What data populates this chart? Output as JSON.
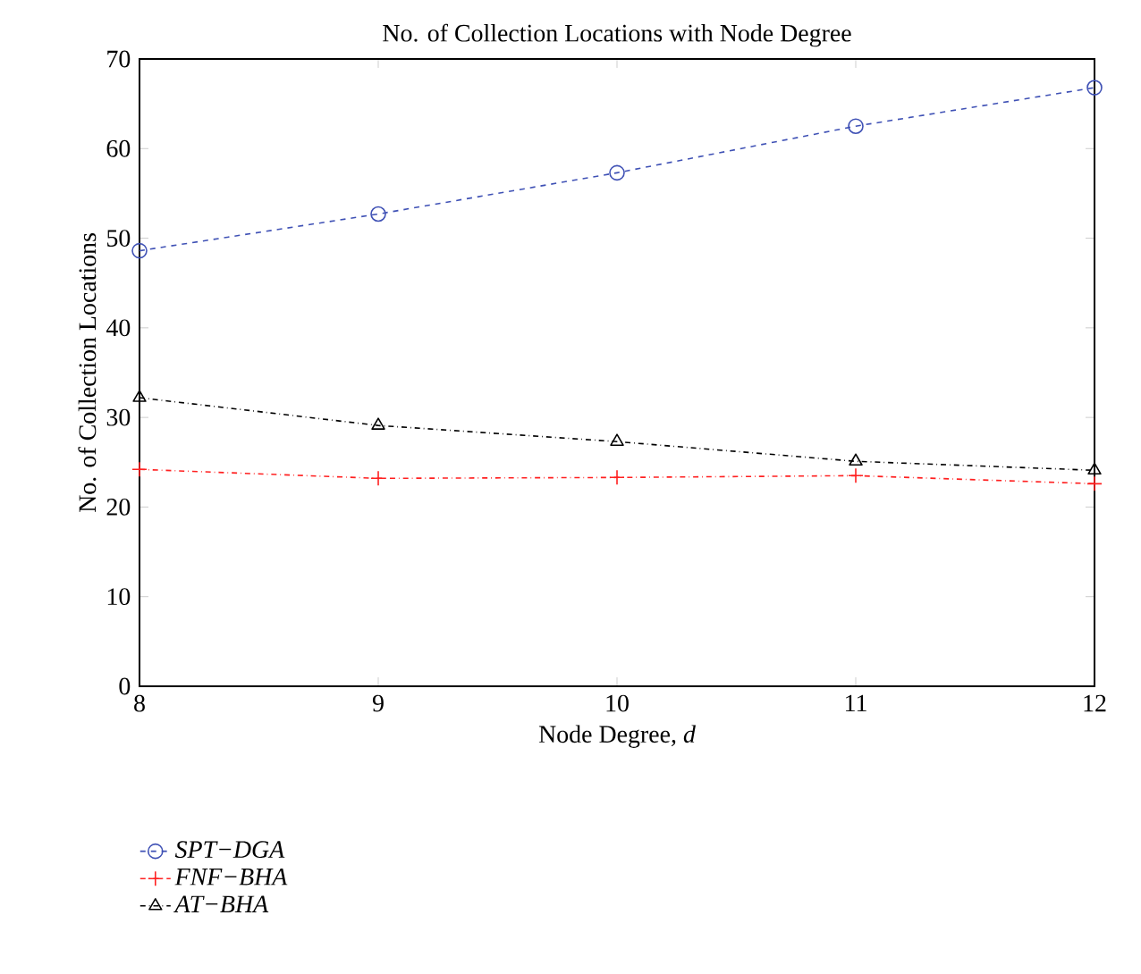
{
  "chart_data": {
    "type": "line",
    "title": "No. of Collection Locations with Node Degree",
    "xlabel": "Node Degree, *d*",
    "ylabel": "No. of Collection Locations",
    "x": [
      8,
      9,
      10,
      11,
      12
    ],
    "xlim": [
      8,
      12
    ],
    "xticks": [
      8,
      9,
      10,
      11,
      12
    ],
    "ylim": [
      0,
      70
    ],
    "yticks": [
      0,
      10,
      20,
      30,
      40,
      50,
      60,
      70
    ],
    "legend": "bottom left",
    "series": [
      {
        "name": "SPT−DGA",
        "color": "#3f51b5",
        "marker": "circle",
        "line_style": "dashed",
        "values": [
          48.6,
          52.7,
          57.3,
          62.5,
          66.8
        ]
      },
      {
        "name": "FNF−BHA",
        "color": "#ff2020",
        "marker": "cross",
        "line_style": "dashdot",
        "values": [
          24.2,
          23.2,
          23.3,
          23.5,
          22.6
        ]
      },
      {
        "name": "AT−BHA",
        "color": "#000000",
        "marker": "triangle",
        "line_style": "dashdot",
        "values": [
          32.2,
          29.1,
          27.3,
          25.1,
          24.1
        ]
      }
    ]
  }
}
